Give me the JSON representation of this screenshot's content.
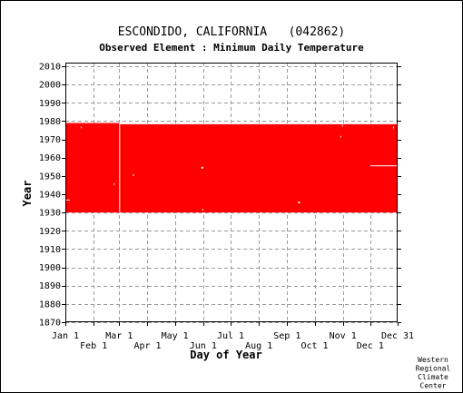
{
  "chart_data": {
    "type": "heatmap",
    "title": "ESCONDIDO, CALIFORNIA   (042862)",
    "subtitle": "Observed Element : Minimum Daily Temperature",
    "xlabel": "Day of Year",
    "ylabel": "Year",
    "credit": [
      "Western",
      "Regional",
      "Climate",
      "Center"
    ],
    "xlim": [
      1,
      365
    ],
    "ylim": [
      1870,
      2012
    ],
    "x_ticks_top_row": [
      {
        "label": "Jan 1",
        "day": 1
      },
      {
        "label": "Mar 1",
        "day": 60
      },
      {
        "label": "May 1",
        "day": 121
      },
      {
        "label": "Jul 1",
        "day": 182
      },
      {
        "label": "Sep 1",
        "day": 244
      },
      {
        "label": "Nov 1",
        "day": 305
      },
      {
        "label": "Dec 31",
        "day": 365
      }
    ],
    "x_ticks_bottom_row": [
      {
        "label": "Feb 1",
        "day": 32
      },
      {
        "label": "Apr 1",
        "day": 91
      },
      {
        "label": "Jun 1",
        "day": 152
      },
      {
        "label": "Aug 1",
        "day": 213
      },
      {
        "label": "Oct 1",
        "day": 274
      },
      {
        "label": "Dec 1",
        "day": 335
      }
    ],
    "y_ticks": [
      1870,
      1880,
      1890,
      1900,
      1910,
      1920,
      1930,
      1940,
      1950,
      1960,
      1970,
      1980,
      1990,
      2000,
      2010
    ],
    "data_color": "#ff0000",
    "grid": true,
    "observed_blocks": [
      {
        "day_start": 1,
        "day_end": 365,
        "year_start": 1930,
        "year_end": 1978.3
      },
      {
        "day_start": 1,
        "day_end": 60,
        "year_start": 1978.3,
        "year_end": 1979
      }
    ],
    "missing_gaps": [
      {
        "day_start": 1,
        "day_end": 6,
        "year_start": 1936.9,
        "year_end": 1937.1
      },
      {
        "day_start": 60,
        "day_end": 61,
        "year_start": 1930,
        "year_end": 1979
      },
      {
        "day_start": 18,
        "day_end": 19,
        "year_start": 1976,
        "year_end": 1977
      },
      {
        "day_start": 54,
        "day_end": 55,
        "year_start": 1945,
        "year_end": 1946
      },
      {
        "day_start": 75,
        "day_end": 76,
        "year_start": 1950,
        "year_end": 1951
      },
      {
        "day_start": 150,
        "day_end": 152,
        "year_start": 1954,
        "year_end": 1955
      },
      {
        "day_start": 151,
        "day_end": 152,
        "year_start": 1931,
        "year_end": 1932
      },
      {
        "day_start": 256,
        "day_end": 258,
        "year_start": 1935,
        "year_end": 1936
      },
      {
        "day_start": 304,
        "day_end": 305,
        "year_start": 1977,
        "year_end": 1978
      },
      {
        "day_start": 302,
        "day_end": 303,
        "year_start": 1971,
        "year_end": 1972
      },
      {
        "day_start": 335,
        "day_end": 364,
        "year_start": 1955.5,
        "year_end": 1955.8
      },
      {
        "day_start": 360,
        "day_end": 361,
        "year_start": 1976,
        "year_end": 1977
      }
    ]
  }
}
